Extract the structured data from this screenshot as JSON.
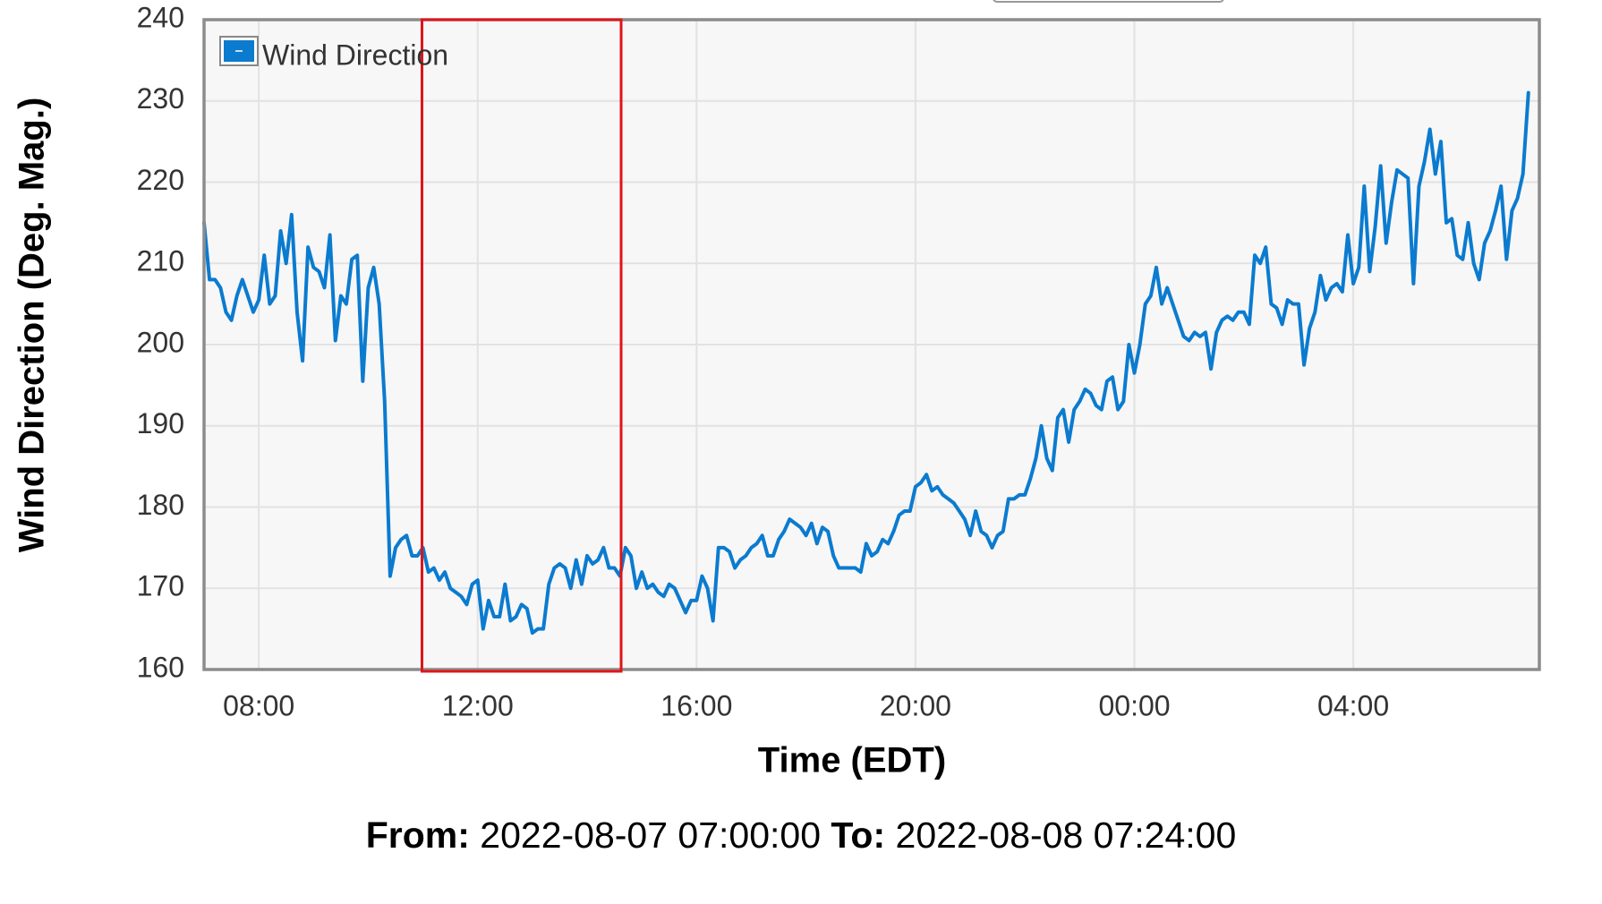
{
  "chart_data": {
    "type": "line",
    "x_label": "Time (EDT)",
    "y_label": "Wind Direction (Deg. Mag.)",
    "xlim": [
      7,
      31.4
    ],
    "ylim": [
      160,
      240
    ],
    "xticks": [
      {
        "value": 8,
        "label": "08:00"
      },
      {
        "value": 12,
        "label": "12:00"
      },
      {
        "value": 16,
        "label": "16:00"
      },
      {
        "value": 20,
        "label": "20:00"
      },
      {
        "value": 24,
        "label": "00:00"
      },
      {
        "value": 28,
        "label": "04:00"
      }
    ],
    "yticks": [
      160,
      170,
      180,
      190,
      200,
      210,
      220,
      230,
      240
    ],
    "grid": true,
    "legend": "upper-left",
    "x": [
      7.0,
      7.1,
      7.2,
      7.3,
      7.4,
      7.5,
      7.6,
      7.7,
      7.8,
      7.9,
      8.0,
      8.1,
      8.2,
      8.3,
      8.4,
      8.5,
      8.6,
      8.7,
      8.8,
      8.9,
      9.0,
      9.1,
      9.2,
      9.3,
      9.4,
      9.5,
      9.6,
      9.7,
      9.8,
      9.9,
      10.0,
      10.1,
      10.2,
      10.3,
      10.4,
      10.5,
      10.6,
      10.7,
      10.8,
      10.9,
      11.0,
      11.1,
      11.2,
      11.3,
      11.4,
      11.5,
      11.6,
      11.7,
      11.8,
      11.9,
      12.0,
      12.1,
      12.2,
      12.3,
      12.4,
      12.5,
      12.6,
      12.7,
      12.8,
      12.9,
      13.0,
      13.1,
      13.2,
      13.3,
      13.4,
      13.5,
      13.6,
      13.7,
      13.8,
      13.9,
      14.0,
      14.1,
      14.2,
      14.3,
      14.4,
      14.5,
      14.6,
      14.7,
      14.8,
      14.9,
      15.0,
      15.1,
      15.2,
      15.3,
      15.4,
      15.5,
      15.6,
      15.7,
      15.8,
      15.9,
      16.0,
      16.1,
      16.2,
      16.3,
      16.4,
      16.5,
      16.6,
      16.7,
      16.8,
      16.9,
      17.0,
      17.1,
      17.2,
      17.3,
      17.4,
      17.5,
      17.6,
      17.7,
      17.8,
      17.9,
      18.0,
      18.1,
      18.2,
      18.3,
      18.4,
      18.5,
      18.6,
      18.7,
      18.8,
      18.9,
      19.0,
      19.1,
      19.2,
      19.3,
      19.4,
      19.5,
      19.6,
      19.7,
      19.8,
      19.9,
      20.0,
      20.1,
      20.2,
      20.3,
      20.4,
      20.5,
      20.6,
      20.7,
      20.8,
      20.9,
      21.0,
      21.1,
      21.2,
      21.3,
      21.4,
      21.5,
      21.6,
      21.7,
      21.8,
      21.9,
      22.0,
      22.1,
      22.2,
      22.3,
      22.4,
      22.5,
      22.6,
      22.7,
      22.8,
      22.9,
      23.0,
      23.1,
      23.2,
      23.3,
      23.4,
      23.5,
      23.6,
      23.7,
      23.8,
      23.9,
      24.0,
      24.1,
      24.2,
      24.3,
      24.4,
      24.5,
      24.6,
      24.7,
      24.8,
      24.9,
      25.0,
      25.1,
      25.2,
      25.3,
      25.4,
      25.5,
      25.6,
      25.7,
      25.8,
      25.9,
      26.0,
      26.1,
      26.2,
      26.3,
      26.4,
      26.5,
      26.6,
      26.7,
      26.8,
      26.9,
      27.0,
      27.1,
      27.2,
      27.3,
      27.4,
      27.5,
      27.6,
      27.7,
      27.8,
      27.9,
      28.0,
      28.1,
      28.2,
      28.3,
      28.4,
      28.5,
      28.6,
      28.7,
      28.8,
      28.9,
      29.0,
      29.1,
      29.2,
      29.3,
      29.4,
      29.5,
      29.6,
      29.7,
      29.8,
      29.9,
      30.0,
      30.1,
      30.2,
      30.3,
      30.4,
      30.5,
      30.6,
      30.7,
      30.8,
      30.9,
      31.0,
      31.1,
      31.2
    ],
    "series": [
      {
        "name": "Wind Direction",
        "color": "#0b7bcf",
        "values": [
          215,
          208,
          208,
          207,
          204,
          203,
          206,
          208,
          206,
          204,
          205.5,
          211,
          205,
          206,
          214,
          210,
          216,
          204,
          198,
          212,
          209.5,
          209,
          207,
          213.5,
          200.5,
          206,
          205,
          210.5,
          211,
          195.5,
          207,
          209.5,
          205,
          193,
          171.5,
          175,
          176,
          176.5,
          174,
          174,
          175,
          172,
          172.5,
          171,
          172,
          170,
          169.5,
          169,
          168,
          170.5,
          171,
          165,
          168.5,
          166.5,
          166.5,
          170.5,
          166,
          166.5,
          168,
          167.5,
          164.5,
          165,
          165,
          170.5,
          172.5,
          173,
          172.5,
          170,
          173.5,
          170.5,
          174,
          173,
          173.5,
          175,
          172.5,
          172.5,
          171.5,
          175,
          174,
          170,
          172,
          170,
          170.5,
          169.5,
          169,
          170.5,
          170,
          168.5,
          167,
          168.5,
          168.5,
          171.5,
          170,
          166,
          175,
          175,
          174.5,
          172.5,
          173.5,
          174,
          175,
          175.5,
          176.5,
          174,
          174,
          176,
          177,
          178.5,
          178,
          177.5,
          176.5,
          178,
          175.5,
          177.5,
          177,
          174,
          172.5,
          172.5,
          172.5,
          172.5,
          172,
          175.5,
          174,
          174.5,
          176,
          175.5,
          177,
          179,
          179.5,
          179.5,
          182.5,
          183,
          184,
          182,
          182.5,
          181.5,
          181,
          180.5,
          179.5,
          178.5,
          176.5,
          179.5,
          177,
          176.5,
          175,
          176.5,
          177,
          181,
          181,
          181.5,
          181.5,
          183.5,
          186,
          190,
          186,
          184.5,
          191,
          192,
          188,
          192,
          193,
          194.5,
          194,
          192.5,
          192,
          195.5,
          196,
          192,
          193,
          200,
          196.5,
          200,
          205,
          206,
          209.5,
          205,
          207,
          205,
          203,
          201,
          200.5,
          201.5,
          201,
          201.5,
          197,
          201.5,
          203,
          203.5,
          203,
          204,
          204,
          202.5,
          211,
          210,
          212,
          205,
          204.5,
          202.5,
          205.5,
          205,
          205,
          197.5,
          202,
          204,
          208.5,
          205.5,
          207,
          207.5,
          206.5,
          213.5,
          207.5,
          209.5,
          219.5,
          209,
          214.5,
          222,
          212.5,
          217.5,
          221.5,
          221,
          220.5,
          207.5,
          219.5,
          222.5,
          226.5,
          221,
          225,
          215,
          215.5,
          211,
          210.5,
          215,
          210,
          208,
          212.5,
          214,
          216.5,
          219.5,
          210.5,
          216.5,
          218,
          221,
          231
        ]
      }
    ]
  },
  "footer": {
    "from_label": "From:",
    "from": "2022-08-07 07:00:00",
    "to_label": "To:",
    "to": "2022-08-08 07:24:00"
  }
}
